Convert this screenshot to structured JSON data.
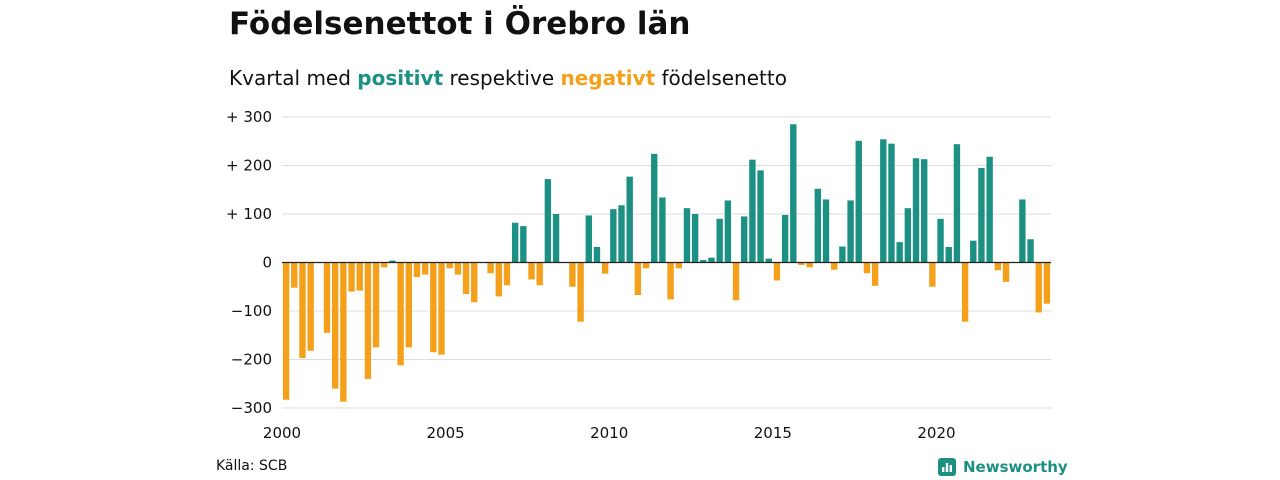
{
  "title": "Födelsenettot i Örebro län",
  "subtitle": {
    "prefix": "Kvartal med",
    "positive_word": "positivt",
    "middle": "respektive",
    "negative_word": "negativt",
    "suffix": "födelsenetto"
  },
  "source": "Källa: SCB",
  "brand": {
    "name": "Newsworthy",
    "icon": "chart-bars-icon"
  },
  "colors": {
    "positive": "#1c9183",
    "negative": "#f5a01b",
    "grid": "#dddddd",
    "zero_line": "#222222"
  },
  "chart_data": {
    "type": "bar",
    "title": "Födelsenettot i Örebro län",
    "subtitle": "Kvartal med positivt respektive negativt födelsenetto",
    "xlabel": "",
    "ylabel": "",
    "ylim": [
      -310,
      310
    ],
    "x_range": [
      2000,
      2023.5
    ],
    "grid": true,
    "y_ticks": [
      {
        "value": 300,
        "label": "+ 300"
      },
      {
        "value": 200,
        "label": "+ 200"
      },
      {
        "value": 100,
        "label": "+ 100"
      },
      {
        "value": 0,
        "label": "0"
      },
      {
        "value": -100,
        "label": "−100"
      },
      {
        "value": -200,
        "label": "−200"
      },
      {
        "value": -300,
        "label": "−300"
      }
    ],
    "x_ticks": [
      {
        "value": 2000,
        "label": "2000"
      },
      {
        "value": 2005,
        "label": "2005"
      },
      {
        "value": 2010,
        "label": "2010"
      },
      {
        "value": 2015,
        "label": "2015"
      },
      {
        "value": 2020,
        "label": "2020"
      }
    ],
    "first_quarter": "2000 Q1",
    "values": [
      -283,
      -52,
      -197,
      -182,
      0,
      -145,
      -260,
      -287,
      -60,
      -58,
      -240,
      -175,
      -10,
      4,
      -212,
      -175,
      -30,
      -25,
      -185,
      -190,
      -12,
      -25,
      -65,
      -82,
      0,
      -22,
      -70,
      -47,
      82,
      75,
      -35,
      -47,
      172,
      100,
      0,
      -50,
      -122,
      97,
      32,
      -23,
      110,
      118,
      177,
      -67,
      -12,
      224,
      134,
      -76,
      -12,
      112,
      100,
      5,
      10,
      90,
      128,
      -78,
      95,
      212,
      190,
      8,
      -37,
      98,
      285,
      -5,
      -10,
      152,
      130,
      -15,
      33,
      128,
      251,
      -22,
      -48,
      254,
      245,
      42,
      112,
      215,
      213,
      -50,
      90,
      32,
      244,
      -122,
      45,
      195,
      218,
      -16,
      -40,
      0,
      130,
      48,
      -103,
      -85
    ]
  }
}
